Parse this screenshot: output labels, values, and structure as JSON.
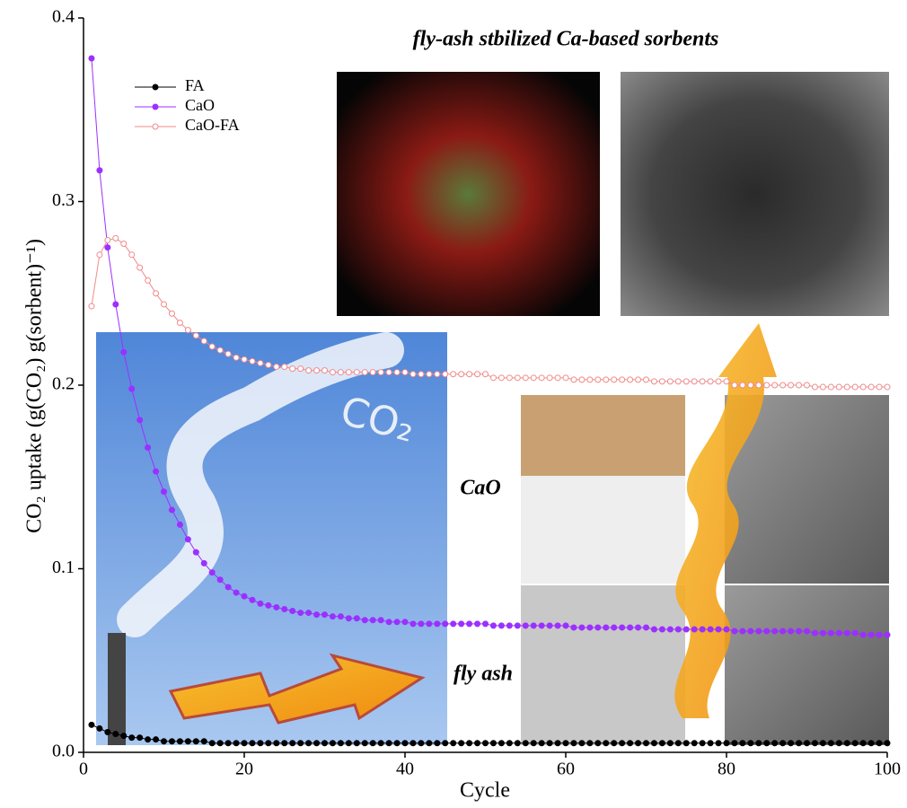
{
  "chart_data": {
    "type": "line",
    "ylabel": "CO₂ uptake (g(CO₂) g(sorbent)⁻¹)",
    "xlabel": "Cycle",
    "annotations": [
      "fly-ash stbilized Ca-based sorbents",
      "CaO",
      "fly ash",
      "CO₂"
    ],
    "xlim": [
      0,
      100
    ],
    "xticks": [
      0,
      20,
      40,
      60,
      80,
      100
    ],
    "ylim": [
      0,
      0.4
    ],
    "yticks": [
      {
        "value": 0,
        "label": "0.0"
      },
      0.1,
      0.2,
      0.3,
      0.4
    ],
    "legend": "upper left",
    "x": [
      1,
      2,
      3,
      4,
      5,
      6,
      7,
      8,
      9,
      10,
      11,
      12,
      13,
      14,
      15,
      16,
      17,
      18,
      19,
      20,
      21,
      22,
      23,
      24,
      25,
      26,
      27,
      28,
      29,
      30,
      31,
      32,
      33,
      34,
      35,
      36,
      37,
      38,
      39,
      40,
      41,
      42,
      43,
      44,
      45,
      46,
      47,
      48,
      49,
      50,
      51,
      52,
      53,
      54,
      55,
      56,
      57,
      58,
      59,
      60,
      61,
      62,
      63,
      64,
      65,
      66,
      67,
      68,
      69,
      70,
      71,
      72,
      73,
      74,
      75,
      76,
      77,
      78,
      79,
      80,
      81,
      82,
      83,
      84,
      85,
      86,
      87,
      88,
      89,
      90,
      91,
      92,
      93,
      94,
      95,
      96,
      97,
      98,
      99,
      100
    ],
    "series": [
      {
        "name": "FA",
        "color": "#000000",
        "marker": "filled",
        "values": [
          0.015,
          0.013,
          0.011,
          0.01,
          0.009,
          0.008,
          0.008,
          0.007,
          0.007,
          0.006,
          0.006,
          0.006,
          0.006,
          0.006,
          0.006,
          0.005,
          0.005,
          0.005,
          0.005,
          0.005,
          0.005,
          0.005,
          0.005,
          0.005,
          0.005,
          0.005,
          0.005,
          0.005,
          0.005,
          0.005,
          0.005,
          0.005,
          0.005,
          0.005,
          0.005,
          0.005,
          0.005,
          0.005,
          0.005,
          0.005,
          0.005,
          0.005,
          0.005,
          0.005,
          0.005,
          0.005,
          0.005,
          0.005,
          0.005,
          0.005,
          0.005,
          0.005,
          0.005,
          0.005,
          0.005,
          0.005,
          0.005,
          0.005,
          0.005,
          0.005,
          0.005,
          0.005,
          0.005,
          0.005,
          0.005,
          0.005,
          0.005,
          0.005,
          0.005,
          0.005,
          0.005,
          0.005,
          0.005,
          0.005,
          0.005,
          0.005,
          0.005,
          0.005,
          0.005,
          0.005,
          0.005,
          0.005,
          0.005,
          0.005,
          0.005,
          0.005,
          0.005,
          0.005,
          0.005,
          0.005,
          0.005,
          0.005,
          0.005,
          0.005,
          0.005,
          0.005,
          0.005,
          0.005,
          0.005,
          0.005
        ]
      },
      {
        "name": "CaO",
        "color": "#9b30ff",
        "marker": "filled",
        "values": [
          0.378,
          0.317,
          0.275,
          0.244,
          0.218,
          0.198,
          0.181,
          0.166,
          0.153,
          0.142,
          0.132,
          0.124,
          0.116,
          0.109,
          0.103,
          0.098,
          0.094,
          0.09,
          0.087,
          0.085,
          0.083,
          0.081,
          0.08,
          0.079,
          0.078,
          0.077,
          0.076,
          0.076,
          0.075,
          0.075,
          0.074,
          0.074,
          0.073,
          0.073,
          0.072,
          0.072,
          0.072,
          0.071,
          0.071,
          0.071,
          0.07,
          0.07,
          0.07,
          0.07,
          0.07,
          0.07,
          0.07,
          0.07,
          0.07,
          0.07,
          0.069,
          0.069,
          0.069,
          0.069,
          0.069,
          0.069,
          0.069,
          0.069,
          0.069,
          0.069,
          0.068,
          0.068,
          0.068,
          0.068,
          0.068,
          0.068,
          0.068,
          0.068,
          0.068,
          0.068,
          0.067,
          0.067,
          0.067,
          0.067,
          0.067,
          0.067,
          0.067,
          0.067,
          0.067,
          0.067,
          0.066,
          0.066,
          0.066,
          0.066,
          0.066,
          0.066,
          0.066,
          0.066,
          0.066,
          0.066,
          0.065,
          0.065,
          0.065,
          0.065,
          0.065,
          0.065,
          0.064,
          0.064,
          0.064,
          0.064
        ]
      },
      {
        "name": "CaO-FA",
        "color": "#f08a8a",
        "marker": "open",
        "values": [
          0.243,
          0.271,
          0.279,
          0.28,
          0.277,
          0.271,
          0.264,
          0.257,
          0.25,
          0.244,
          0.239,
          0.234,
          0.23,
          0.227,
          0.224,
          0.221,
          0.219,
          0.217,
          0.215,
          0.214,
          0.213,
          0.212,
          0.211,
          0.21,
          0.21,
          0.209,
          0.209,
          0.208,
          0.208,
          0.208,
          0.207,
          0.207,
          0.207,
          0.207,
          0.207,
          0.207,
          0.207,
          0.207,
          0.207,
          0.207,
          0.206,
          0.206,
          0.206,
          0.206,
          0.206,
          0.206,
          0.206,
          0.206,
          0.206,
          0.206,
          0.204,
          0.204,
          0.204,
          0.204,
          0.204,
          0.204,
          0.204,
          0.204,
          0.204,
          0.204,
          0.203,
          0.203,
          0.203,
          0.203,
          0.203,
          0.203,
          0.203,
          0.203,
          0.203,
          0.203,
          0.202,
          0.202,
          0.202,
          0.202,
          0.202,
          0.202,
          0.202,
          0.202,
          0.202,
          0.202,
          0.2,
          0.2,
          0.2,
          0.2,
          0.2,
          0.2,
          0.2,
          0.2,
          0.2,
          0.2,
          0.199,
          0.199,
          0.199,
          0.199,
          0.199,
          0.199,
          0.199,
          0.199,
          0.199,
          0.199
        ]
      }
    ]
  }
}
